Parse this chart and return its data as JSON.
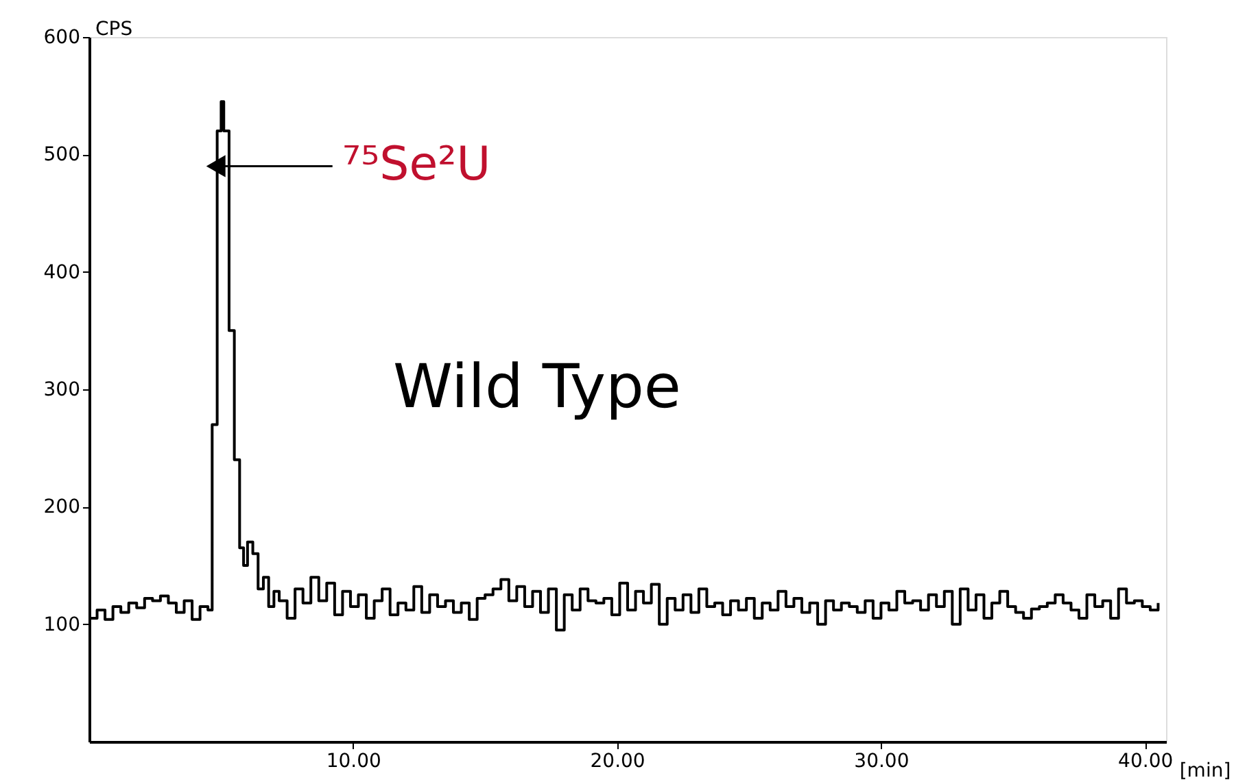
{
  "chart_data": {
    "type": "step",
    "ylabel": "CPS",
    "xlabel": "[min]",
    "xlim": [
      0,
      40.8
    ],
    "xticks": [
      {
        "value": 10,
        "label": "10.00"
      },
      {
        "value": 20,
        "label": "20.00"
      },
      {
        "value": 30,
        "label": "30.00"
      },
      {
        "value": 40,
        "label": "40.00"
      }
    ],
    "ylim": [
      0,
      600
    ],
    "yticks": [
      100,
      200,
      300,
      400,
      500,
      600
    ],
    "grid": false,
    "marker": "none",
    "line_style": "solid",
    "annotations": [
      {
        "text": "⁷⁵Se²U",
        "x": 4.8,
        "y": 490
      },
      "Wild Type"
    ],
    "series": [
      {
        "color": "#000000",
        "x": [
          0,
          0.3,
          0.6,
          0.9,
          1.2,
          1.5,
          1.8,
          2.1,
          2.4,
          2.7,
          3.0,
          3.3,
          3.6,
          3.9,
          4.2,
          4.5,
          4.66,
          4.85,
          5.0,
          5.1,
          5.3,
          5.5,
          5.7,
          5.85,
          6.0,
          6.2,
          6.4,
          6.6,
          6.8,
          7.0,
          7.2,
          7.5,
          7.8,
          8.1,
          8.4,
          8.7,
          9.0,
          9.3,
          9.6,
          9.9,
          10.2,
          10.5,
          10.8,
          11.1,
          11.4,
          11.7,
          12.0,
          12.3,
          12.6,
          12.9,
          13.2,
          13.5,
          13.8,
          14.1,
          14.4,
          14.7,
          15.0,
          15.3,
          15.6,
          15.9,
          16.2,
          16.5,
          16.8,
          17.1,
          17.4,
          17.7,
          18.0,
          18.3,
          18.6,
          18.9,
          19.2,
          19.5,
          19.8,
          20.1,
          20.4,
          20.7,
          21.0,
          21.3,
          21.6,
          21.9,
          22.2,
          22.5,
          22.8,
          23.1,
          23.4,
          23.7,
          24.0,
          24.3,
          24.6,
          24.9,
          25.2,
          25.5,
          25.8,
          26.1,
          26.4,
          26.7,
          27.0,
          27.3,
          27.6,
          27.9,
          28.2,
          28.5,
          28.8,
          29.1,
          29.4,
          29.7,
          30.0,
          30.3,
          30.6,
          30.9,
          31.2,
          31.5,
          31.8,
          32.1,
          32.4,
          32.7,
          33.0,
          33.3,
          33.6,
          33.9,
          34.2,
          34.5,
          34.8,
          35.1,
          35.4,
          35.7,
          36.0,
          36.3,
          36.6,
          36.9,
          37.2,
          37.5,
          37.8,
          38.1,
          38.4,
          38.7,
          39.0,
          39.3,
          39.6,
          39.9,
          40.2,
          40.5
        ],
        "values": [
          105,
          112,
          104,
          115,
          110,
          118,
          114,
          122,
          120,
          124,
          118,
          110,
          120,
          104,
          115,
          112,
          270,
          520,
          545,
          520,
          350,
          240,
          165,
          150,
          170,
          160,
          130,
          140,
          115,
          128,
          120,
          105,
          130,
          118,
          140,
          120,
          135,
          108,
          128,
          115,
          125,
          105,
          120,
          130,
          108,
          118,
          112,
          132,
          110,
          125,
          115,
          120,
          110,
          118,
          104,
          122,
          125,
          130,
          138,
          120,
          132,
          115,
          128,
          110,
          130,
          95,
          125,
          112,
          130,
          120,
          118,
          122,
          108,
          135,
          112,
          128,
          118,
          134,
          100,
          122,
          112,
          125,
          110,
          130,
          115,
          118,
          108,
          120,
          112,
          122,
          105,
          118,
          112,
          128,
          115,
          122,
          110,
          118,
          100,
          120,
          112,
          118,
          115,
          110,
          120,
          105,
          118,
          112,
          128,
          118,
          120,
          112,
          125,
          115,
          128,
          100,
          130,
          112,
          125,
          105,
          118,
          128,
          115,
          110,
          105,
          113,
          115,
          118,
          125,
          118,
          112,
          105,
          125,
          115,
          120,
          105,
          130,
          118,
          120,
          115,
          112,
          118
        ]
      }
    ]
  }
}
